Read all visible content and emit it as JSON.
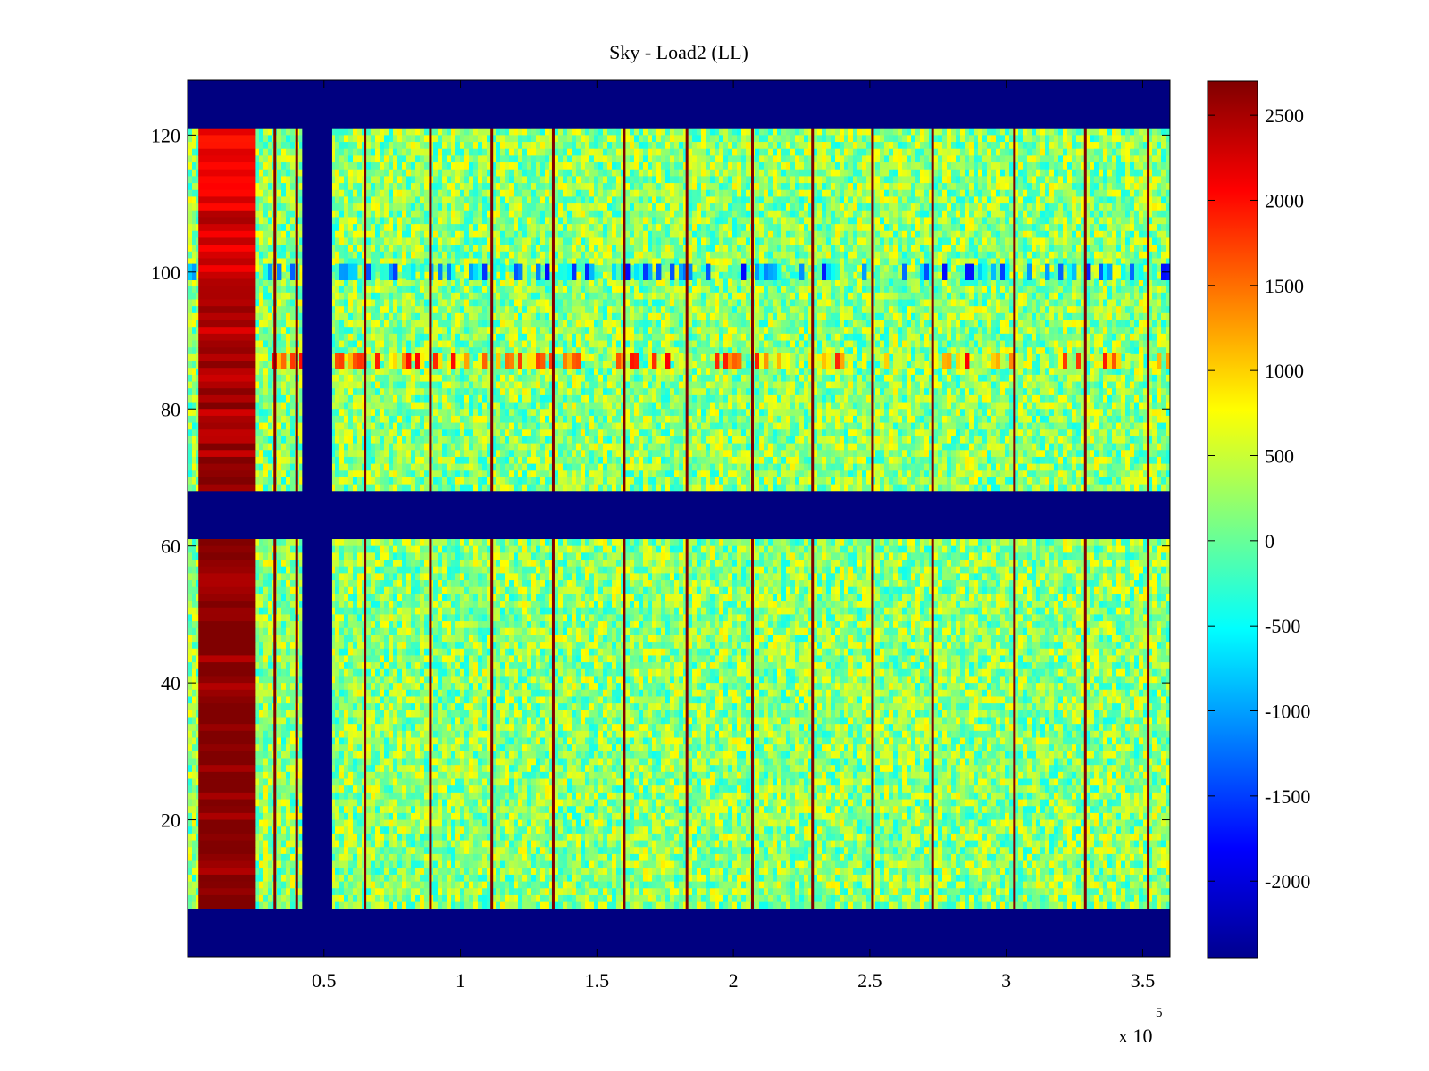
{
  "chart_data": {
    "type": "heatmap",
    "title": "Sky - Load2 (LL)",
    "xlabel": "",
    "ylabel": "",
    "x_exponent_base": "x 10",
    "x_exponent_power": "5",
    "xlim": [
      0,
      360000
    ],
    "ylim": [
      0,
      128
    ],
    "x_ticks": [
      {
        "value": 50000,
        "label": "0.5"
      },
      {
        "value": 100000,
        "label": "1"
      },
      {
        "value": 150000,
        "label": "1.5"
      },
      {
        "value": 200000,
        "label": "2"
      },
      {
        "value": 250000,
        "label": "2.5"
      },
      {
        "value": 300000,
        "label": "3"
      },
      {
        "value": 350000,
        "label": "3.5"
      }
    ],
    "y_ticks": [
      {
        "value": 20,
        "label": "20"
      },
      {
        "value": 40,
        "label": "40"
      },
      {
        "value": 60,
        "label": "60"
      },
      {
        "value": 80,
        "label": "80"
      },
      {
        "value": 100,
        "label": "100"
      },
      {
        "value": 120,
        "label": "120"
      }
    ],
    "colorbar": {
      "colormap": "jet",
      "clim": [
        -2450,
        2700
      ],
      "ticks": [
        {
          "value": 2500,
          "label": "2500"
        },
        {
          "value": 2000,
          "label": "2000"
        },
        {
          "value": 1500,
          "label": "1500"
        },
        {
          "value": 1000,
          "label": "1000"
        },
        {
          "value": 500,
          "label": "500"
        },
        {
          "value": 0,
          "label": "0"
        },
        {
          "value": -500,
          "label": "-500"
        },
        {
          "value": -1000,
          "label": "-1000"
        },
        {
          "value": -1500,
          "label": "-1500"
        },
        {
          "value": -2000,
          "label": "-2000"
        }
      ]
    },
    "background_value": 200,
    "masked_value": -2450,
    "masked_channel_bands": [
      [
        0,
        7
      ],
      [
        61,
        68
      ],
      [
        121,
        128
      ]
    ],
    "masked_time_band": [
      42000,
      53000
    ],
    "hot_region": {
      "x_range": [
        4000,
        25000
      ],
      "value_top": 2100,
      "value_bottom": 2650
    },
    "spike_lines_x": [
      32000,
      40000,
      65000,
      89000,
      111500,
      134000,
      160000,
      183000,
      207000,
      229000,
      251000,
      273000,
      303000,
      329000,
      352000
    ],
    "spike_value": 2700,
    "rfi_rows": [
      {
        "y": 100,
        "value": -900
      },
      {
        "y": 87,
        "value": 1200
      }
    ],
    "grid": false,
    "legend": "none"
  }
}
